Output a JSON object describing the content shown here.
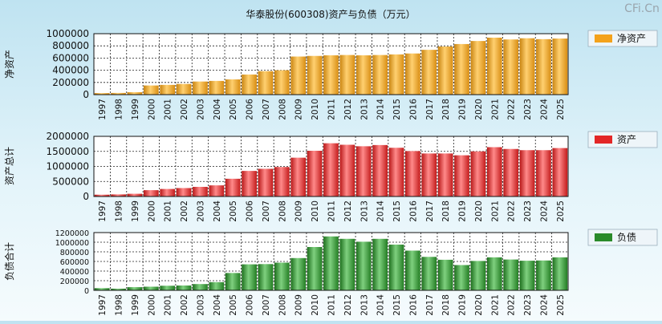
{
  "header": {
    "title": "华泰股份(600308)资产与负债（万元）",
    "watermark": "CFi.Cn"
  },
  "chart_data": [
    {
      "type": "bar",
      "title": "华泰股份(600308)资产与负债（万元）",
      "ylabel": "净资产",
      "legend": "净资产",
      "color": "#f4a21b",
      "categories": [
        "1997",
        "1998",
        "1999",
        "2000",
        "2001",
        "2002",
        "2003",
        "2004",
        "2005",
        "2006",
        "2007",
        "2008",
        "2009",
        "2010",
        "2011",
        "2012",
        "2013",
        "2014",
        "2015",
        "2016",
        "2017",
        "2018",
        "2019",
        "2020",
        "2021",
        "2022",
        "2023",
        "2024",
        "2025"
      ],
      "values": [
        25000,
        28000,
        40000,
        150000,
        160000,
        175000,
        215000,
        225000,
        250000,
        330000,
        385000,
        400000,
        625000,
        635000,
        645000,
        650000,
        645000,
        650000,
        660000,
        675000,
        735000,
        790000,
        830000,
        880000,
        935000,
        905000,
        925000,
        910000,
        920000
      ],
      "ylim": [
        0,
        1000000
      ],
      "yticks": [
        "1000000",
        "800000",
        "600000",
        "400000",
        "200000",
        "0"
      ],
      "grid": true,
      "legend_position": "right"
    },
    {
      "type": "bar",
      "ylabel": "资产总计",
      "legend": "资产",
      "color": "#e32626",
      "categories": [
        "1997",
        "1998",
        "1999",
        "2000",
        "2001",
        "2002",
        "2003",
        "2004",
        "2005",
        "2006",
        "2007",
        "2008",
        "2009",
        "2010",
        "2011",
        "2012",
        "2013",
        "2014",
        "2015",
        "2016",
        "2017",
        "2018",
        "2019",
        "2020",
        "2021",
        "2022",
        "2023",
        "2024",
        "2025"
      ],
      "values": [
        60000,
        70000,
        90000,
        210000,
        250000,
        280000,
        320000,
        370000,
        590000,
        850000,
        920000,
        980000,
        1290000,
        1520000,
        1770000,
        1720000,
        1670000,
        1710000,
        1620000,
        1510000,
        1430000,
        1430000,
        1370000,
        1500000,
        1640000,
        1580000,
        1540000,
        1540000,
        1610000
      ],
      "ylim": [
        0,
        2000000
      ],
      "yticks": [
        "2000000",
        "1500000",
        "1000000",
        "500000",
        "0"
      ],
      "grid": true,
      "legend_position": "right"
    },
    {
      "type": "bar",
      "ylabel": "负债合计",
      "legend": "负债",
      "color": "#2a8a2a",
      "categories": [
        "1997",
        "1998",
        "1999",
        "2000",
        "2001",
        "2002",
        "2003",
        "2004",
        "2005",
        "2006",
        "2007",
        "2008",
        "2009",
        "2010",
        "2011",
        "2012",
        "2013",
        "2014",
        "2015",
        "2016",
        "2017",
        "2018",
        "2019",
        "2020",
        "2021",
        "2022",
        "2023",
        "2024",
        "2025"
      ],
      "values": [
        45000,
        35000,
        65000,
        75000,
        95000,
        100000,
        130000,
        170000,
        360000,
        540000,
        545000,
        575000,
        670000,
        900000,
        1120000,
        1070000,
        1010000,
        1070000,
        950000,
        825000,
        695000,
        635000,
        525000,
        610000,
        685000,
        640000,
        615000,
        620000,
        685000
      ],
      "ylim": [
        0,
        1200000
      ],
      "yticks": [
        "1200000",
        "1000000",
        "800000",
        "600000",
        "400000",
        "200000",
        "0"
      ],
      "grid": true,
      "legend_position": "right"
    }
  ]
}
